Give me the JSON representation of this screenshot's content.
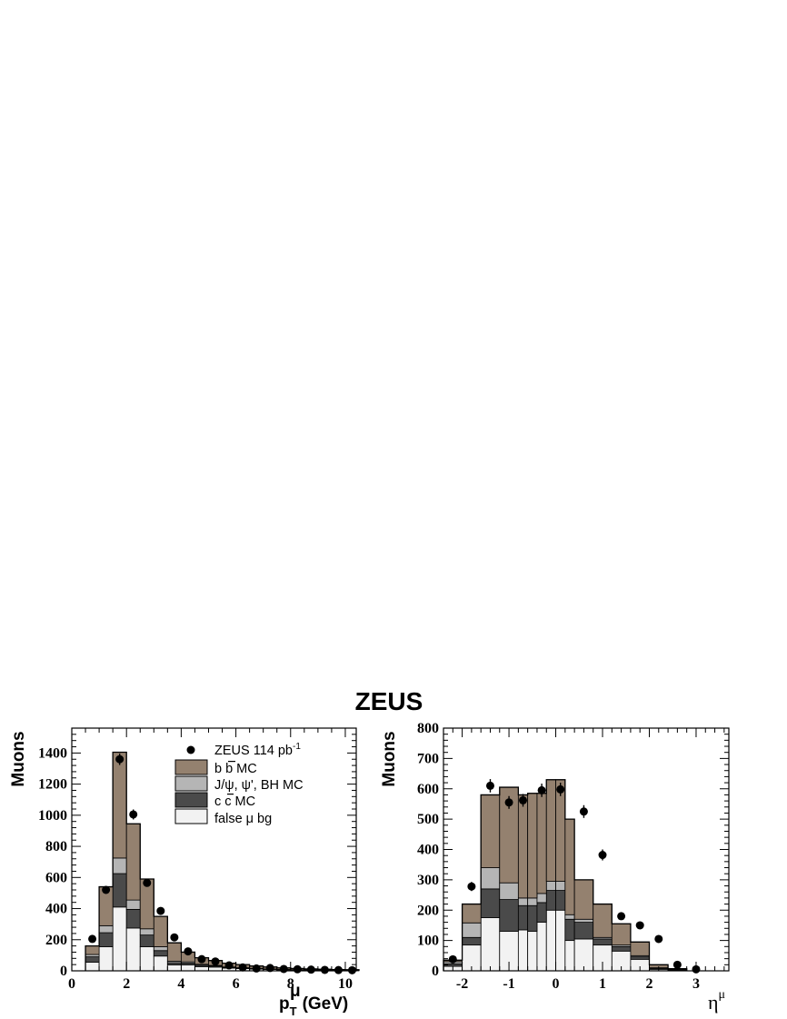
{
  "title": "ZEUS",
  "colors": {
    "bb": "#94816f",
    "jpsi": "#b5b5b5",
    "cc": "#4a4a4a",
    "fake": "#f2f2f2",
    "data": "#000000",
    "line": "#000000"
  },
  "legend": {
    "data": "ZEUS 114 pb",
    "data_sup": "-1",
    "bb": "b b MC",
    "jpsi": "J/ψ, ψ', BH MC",
    "cc": "c c MC",
    "fake": "false μ bg"
  },
  "chart_data": [
    {
      "type": "bar",
      "stacked_histogram": true,
      "xlabel": "p",
      "xlabel_sup": "μ",
      "xlabel_sub": "T",
      "xlabel_unit": "(GeV)",
      "ylabel": "Muons",
      "xlim": [
        0,
        10.4
      ],
      "ylim": [
        0,
        1560
      ],
      "xticks": [
        "0",
        "2",
        "4",
        "6",
        "8",
        "10"
      ],
      "yticks": [
        "0",
        "200",
        "400",
        "600",
        "800",
        "1000",
        "1200",
        "1400"
      ],
      "bin_edges": [
        0.5,
        1.0,
        1.5,
        2.0,
        2.5,
        3.0,
        3.5,
        4.0,
        4.5,
        5.0,
        5.5,
        6.0,
        6.5,
        7.0,
        7.5,
        8.0,
        8.5,
        9.0,
        9.5,
        10.0,
        10.5
      ],
      "series": [
        {
          "name": "false μ bg",
          "key": "fake",
          "values": [
            55,
            155,
            410,
            275,
            155,
            95,
            38,
            38,
            27,
            24,
            17,
            14,
            11,
            9,
            6,
            5,
            4,
            3,
            2,
            2
          ]
        },
        {
          "name": "c c MC",
          "key": "cc",
          "values": [
            35,
            90,
            215,
            120,
            75,
            35,
            14,
            12,
            9,
            7,
            5,
            4,
            3,
            2,
            2,
            1,
            1,
            1,
            1,
            1
          ]
        },
        {
          "name": "J/ψ, ψ', BH MC",
          "key": "jpsi",
          "values": [
            15,
            45,
            100,
            60,
            40,
            25,
            10,
            8,
            6,
            4,
            3,
            2,
            2,
            1,
            1,
            1,
            1,
            1,
            1,
            1
          ]
        },
        {
          "name": "b b MC",
          "key": "bb",
          "values": [
            55,
            250,
            680,
            490,
            320,
            195,
            118,
            62,
            42,
            31,
            24,
            20,
            15,
            13,
            10,
            8,
            6,
            5,
            4,
            3
          ]
        }
      ],
      "data": {
        "name": "ZEUS 114 pb-1",
        "x": [
          0.75,
          1.25,
          1.75,
          2.25,
          2.75,
          3.25,
          3.75,
          4.25,
          4.75,
          5.25,
          5.75,
          6.25,
          6.75,
          7.25,
          7.75,
          8.25,
          8.75,
          9.25,
          9.75,
          10.25
        ],
        "y": [
          205,
          520,
          1360,
          1005,
          565,
          385,
          215,
          125,
          75,
          60,
          35,
          22,
          15,
          18,
          12,
          10,
          8,
          6,
          5,
          4
        ],
        "err": [
          14,
          23,
          37,
          32,
          24,
          20,
          15,
          11,
          9,
          8,
          6,
          5,
          4,
          4,
          3,
          3,
          3,
          2,
          2,
          2
        ]
      },
      "legend_position": "top-right"
    },
    {
      "type": "bar",
      "stacked_histogram": true,
      "xlabel": "η",
      "xlabel_sup": "μ",
      "ylabel": "Muons",
      "xlim": [
        -2.4,
        3.7
      ],
      "ylim": [
        0,
        800
      ],
      "xticks": [
        "-2",
        "-1",
        "0",
        "1",
        "2",
        "3"
      ],
      "yticks": [
        "0",
        "100",
        "200",
        "300",
        "400",
        "500",
        "600",
        "700",
        "800"
      ],
      "bin_edges": [
        -2.4,
        -2.0,
        -1.6,
        -1.2,
        -0.8,
        -0.6,
        -0.4,
        -0.2,
        0.0,
        0.2,
        0.4,
        0.8,
        1.2,
        1.6,
        2.0,
        2.4,
        2.8
      ],
      "series": [
        {
          "name": "false μ bg",
          "key": "fake",
          "values": [
            15,
            85,
            175,
            130,
            135,
            130,
            160,
            200,
            200,
            100,
            105,
            85,
            65,
            38,
            5,
            2
          ]
        },
        {
          "name": "c c MC",
          "key": "cc",
          "values": [
            8,
            25,
            95,
            105,
            80,
            85,
            65,
            65,
            65,
            70,
            55,
            20,
            15,
            8,
            3,
            1
          ]
        },
        {
          "name": "J/ψ, ψ', BH MC",
          "key": "jpsi",
          "values": [
            7,
            48,
            70,
            55,
            25,
            25,
            30,
            30,
            30,
            15,
            10,
            5,
            5,
            4,
            2,
            1
          ]
        },
        {
          "name": "b b MC",
          "key": "bb",
          "values": [
            5,
            62,
            240,
            315,
            340,
            345,
            330,
            335,
            335,
            315,
            130,
            110,
            70,
            45,
            10,
            3
          ]
        }
      ],
      "data": {
        "name": "ZEUS 114 pb-1",
        "x": [
          -2.2,
          -1.8,
          -1.4,
          -1.0,
          -0.7,
          -0.3,
          0.1,
          0.6,
          1.0,
          1.4,
          1.8,
          2.2,
          2.6,
          3.0
        ],
        "y": [
          38,
          278,
          610,
          555,
          562,
          595,
          598,
          525,
          382,
          180,
          150,
          105,
          20,
          5
        ],
        "err": [
          6,
          15,
          22,
          21,
          21,
          22,
          22,
          21,
          18,
          12,
          11,
          9,
          4,
          2
        ]
      }
    }
  ]
}
